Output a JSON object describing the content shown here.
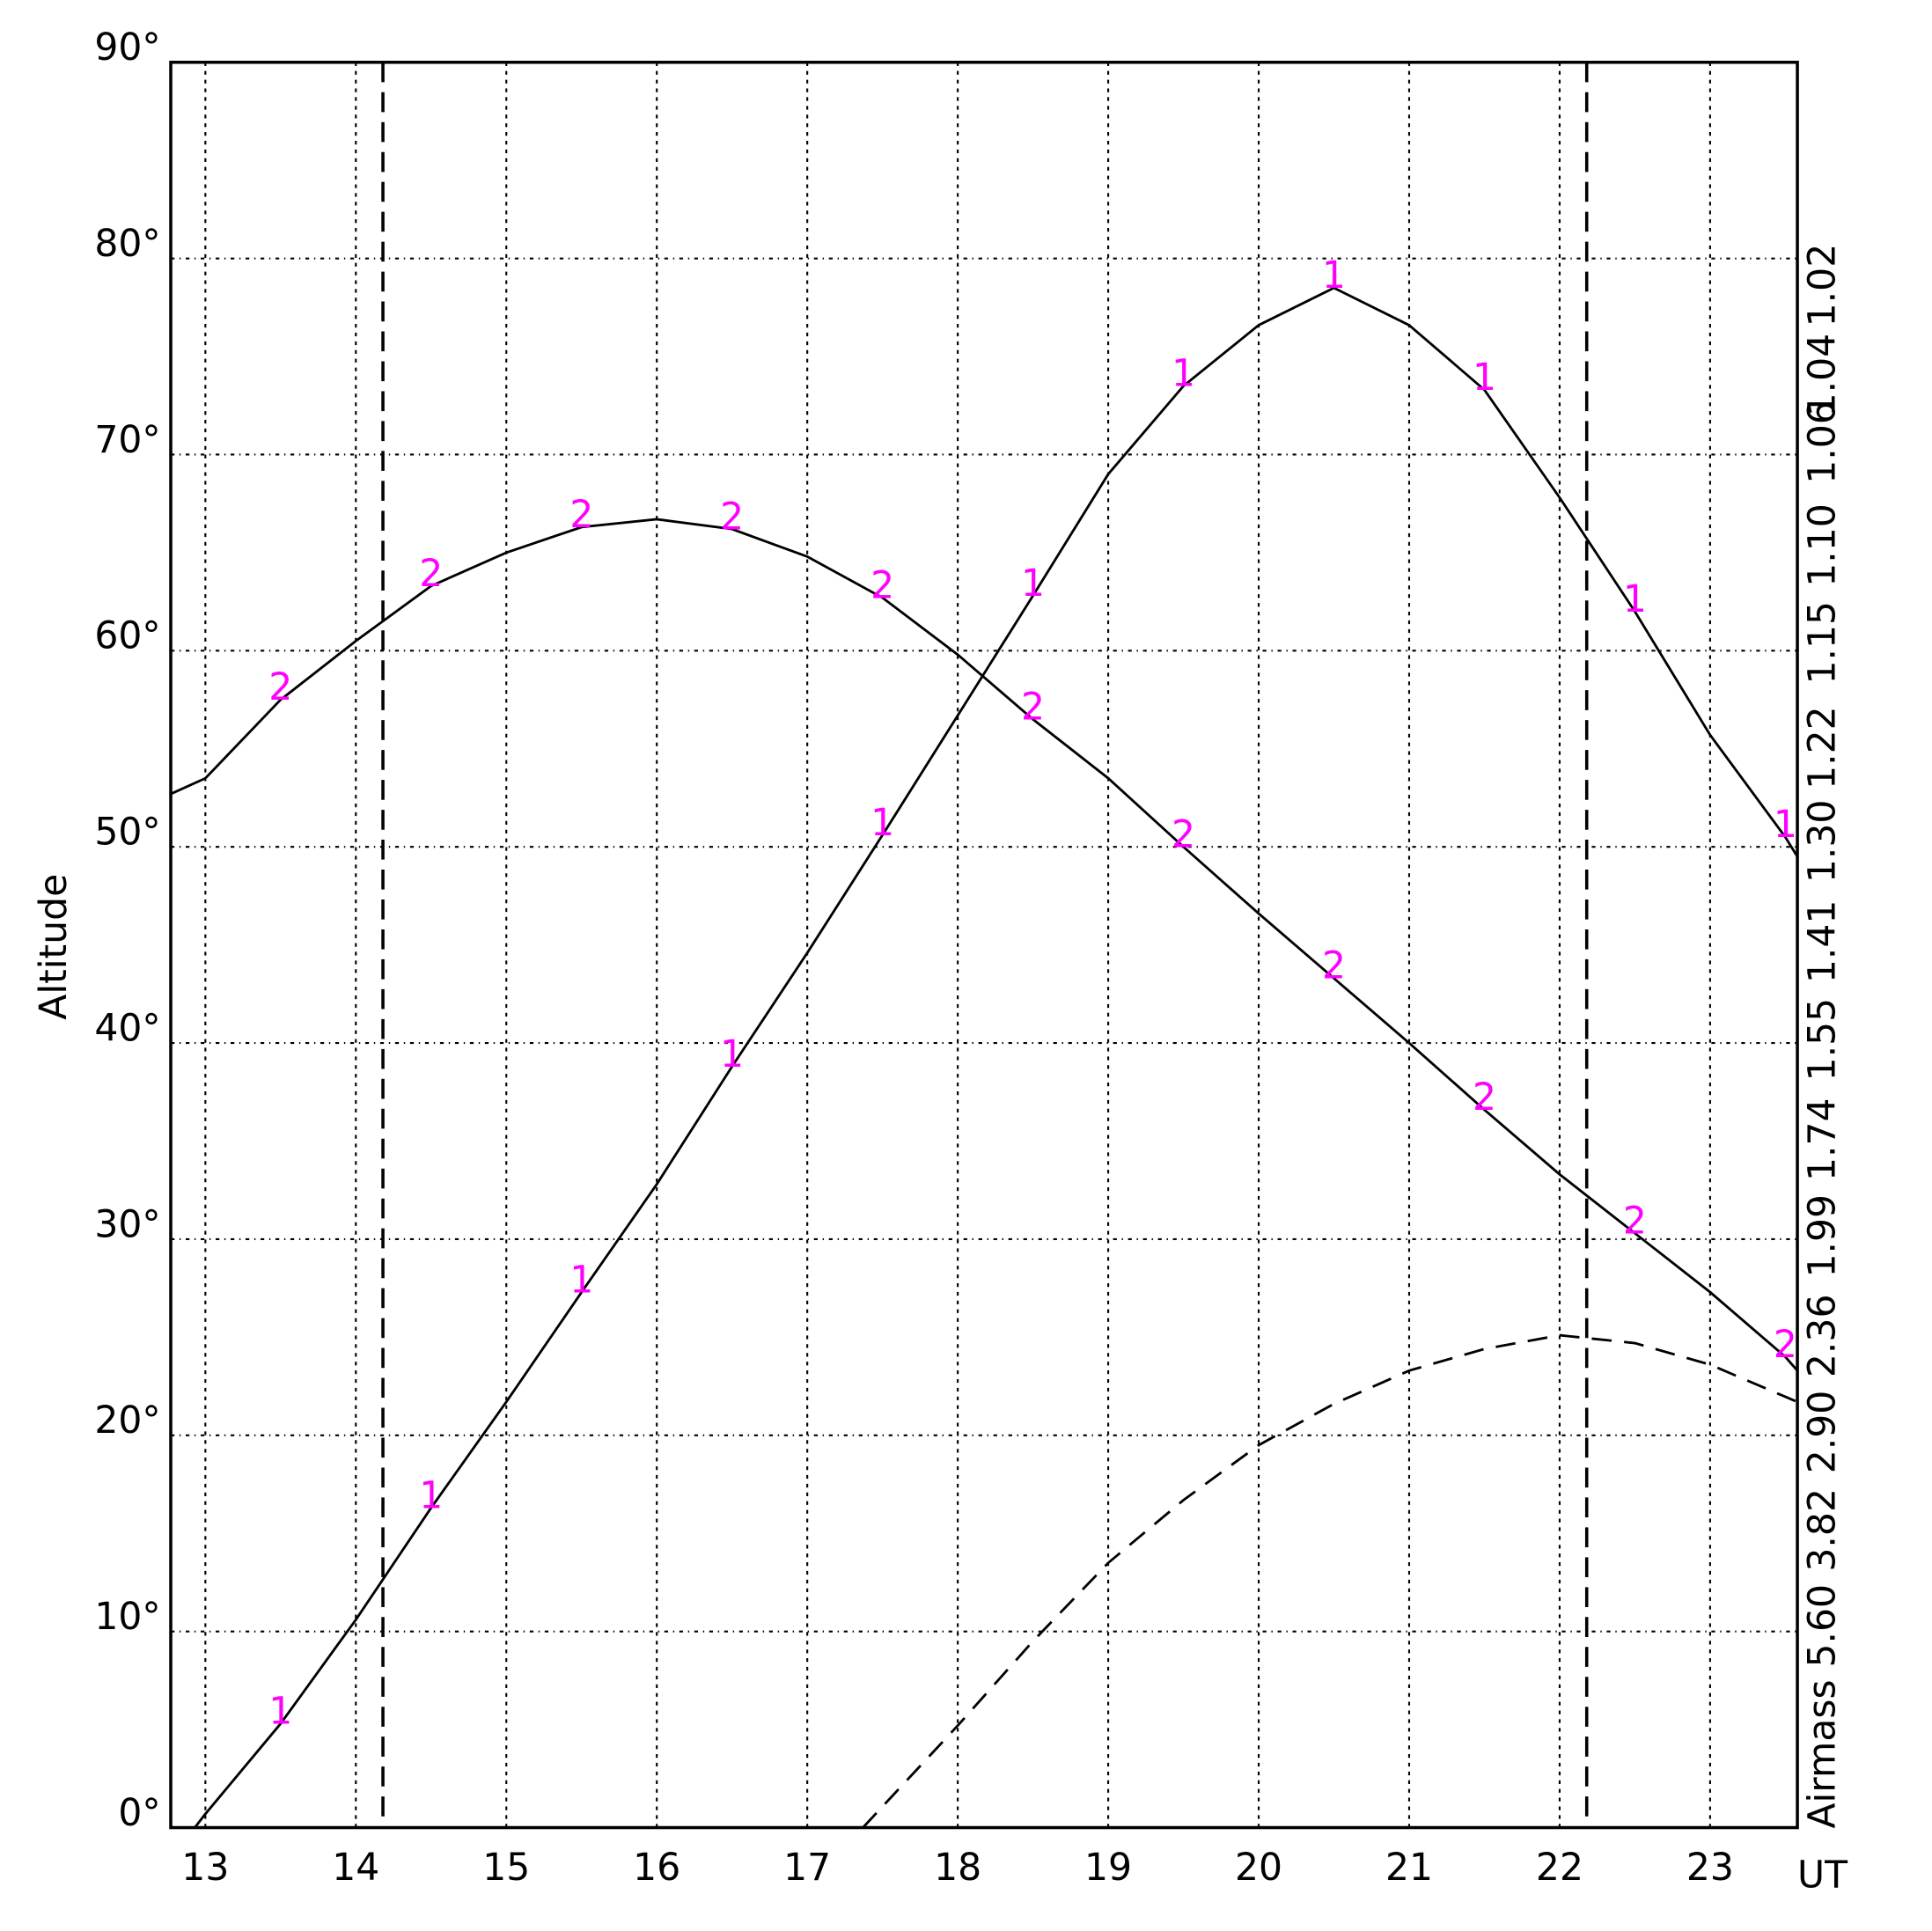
{
  "chart_data": {
    "type": "line",
    "ylabel": "Altitude",
    "xlabel": "UT",
    "y2label": "Airmass",
    "y2scale": "airmass",
    "xlim": [
      12.77,
      23.58
    ],
    "ylim": [
      0,
      90
    ],
    "xticks": [
      13,
      14,
      15,
      16,
      17,
      18,
      19,
      20,
      21,
      22,
      23
    ],
    "yticks": [
      {
        "value": 0,
        "label": "0°"
      },
      {
        "value": 10,
        "label": "10°"
      },
      {
        "value": 20,
        "label": "20°"
      },
      {
        "value": 30,
        "label": "30°"
      },
      {
        "value": 40,
        "label": "40°"
      },
      {
        "value": 50,
        "label": "50°"
      },
      {
        "value": 60,
        "label": "60°"
      },
      {
        "value": 70,
        "label": "70°"
      },
      {
        "value": 80,
        "label": "80°"
      },
      {
        "value": 90,
        "label": "90°"
      }
    ],
    "y2ticks": [
      1.02,
      1.04,
      1.06,
      {
        "value": 1.1,
        "label": "1.10"
      },
      1.15,
      1.22,
      {
        "value": 1.3,
        "label": "1.30"
      },
      1.41,
      1.55,
      1.74,
      1.99,
      2.36,
      {
        "value": 2.9,
        "label": "2.90"
      },
      3.82,
      {
        "value": 5.6,
        "label": "5.60"
      }
    ],
    "grid": true,
    "vlines": [
      14.18,
      22.18
    ],
    "label_color": "#ff00ff",
    "series": [
      {
        "name": "1",
        "color": "#000000",
        "x": [
          12.93,
          13,
          13.5,
          14,
          14.5,
          15,
          15.5,
          16,
          16.5,
          17,
          17.5,
          18,
          18.5,
          19,
          19.5,
          20,
          20.5,
          21,
          21.5,
          22,
          22.5,
          23,
          23.5,
          23.58
        ],
        "values": [
          0,
          0.7,
          5.3,
          10.6,
          16.3,
          21.7,
          27.3,
          32.8,
          38.8,
          44.6,
          50.6,
          56.7,
          62.8,
          69,
          73.5,
          76.6,
          78.5,
          76.6,
          73.3,
          67.8,
          62,
          55.7,
          50.5,
          49.5
        ]
      },
      {
        "name": "2",
        "color": "#000000",
        "x": [
          12.77,
          13,
          13.5,
          14,
          14.5,
          15,
          15.5,
          16,
          16.5,
          17,
          17.5,
          18,
          18.5,
          19,
          19.5,
          20,
          20.5,
          21,
          21.5,
          22,
          22.5,
          23,
          23.5,
          23.58
        ],
        "values": [
          52.7,
          53.5,
          57.5,
          60.5,
          63.3,
          65,
          66.3,
          66.7,
          66.2,
          64.8,
          62.7,
          59.8,
          56.5,
          53.5,
          50,
          46.6,
          43.3,
          40,
          36.6,
          33.3,
          30.3,
          27.3,
          24,
          23.3
        ]
      },
      {
        "color": "#000000",
        "dashed": true,
        "x": [
          17.37,
          18,
          18.5,
          19,
          19.5,
          20,
          20.5,
          21,
          21.5,
          22,
          22.5,
          23,
          23.58
        ],
        "values": [
          0,
          5.2,
          9.5,
          13.5,
          16.7,
          19.5,
          21.6,
          23.3,
          24.4,
          25.1,
          24.7,
          23.6,
          21.7
        ]
      }
    ]
  }
}
